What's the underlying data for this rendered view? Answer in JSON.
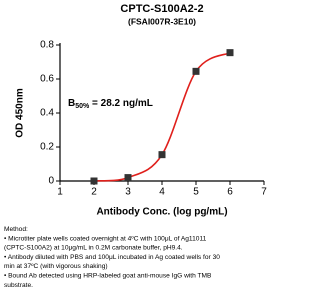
{
  "chart_data": {
    "type": "line",
    "title": "CPTC-S100A2-2",
    "subtitle": "(FSAI007R-3E10)",
    "x_label": "Antibody Conc. (log pg/mL)",
    "y_label": "OD 450nm",
    "annotation": {
      "text": "B",
      "subscript": "50%",
      "rest": " = 28.2 ng/mL"
    },
    "x": [
      2,
      3,
      4,
      5,
      6
    ],
    "series": [
      {
        "values": [
          0.0,
          0.02,
          0.155,
          0.645,
          0.755
        ],
        "color": "#e0201c",
        "marker_color": "#333333"
      }
    ],
    "xlim": [
      1,
      7
    ],
    "xticks": [
      1,
      2,
      3,
      4,
      5,
      6,
      7
    ],
    "ylim": [
      0,
      0.8
    ],
    "yticks": [
      0,
      0.2,
      0.4,
      0.6,
      0.8
    ]
  },
  "method": {
    "title": "Method:",
    "lines": [
      "• Microtiter plate wells coated overnight at 4ºC  with 100μL of Ag11011",
      "(CPTC-S100A2) at 10μg/mL in 0.2M carbonate buffer, pH9.4.",
      "• Antibody diluted with PBS and 100μL incubated in Ag coated wells for 30",
      "min at 37ºC (with vigorous shaking)",
      "• Bound Ab detected using HRP-labeled goat anti-mouse IgG with TMB",
      "substrate."
    ]
  }
}
